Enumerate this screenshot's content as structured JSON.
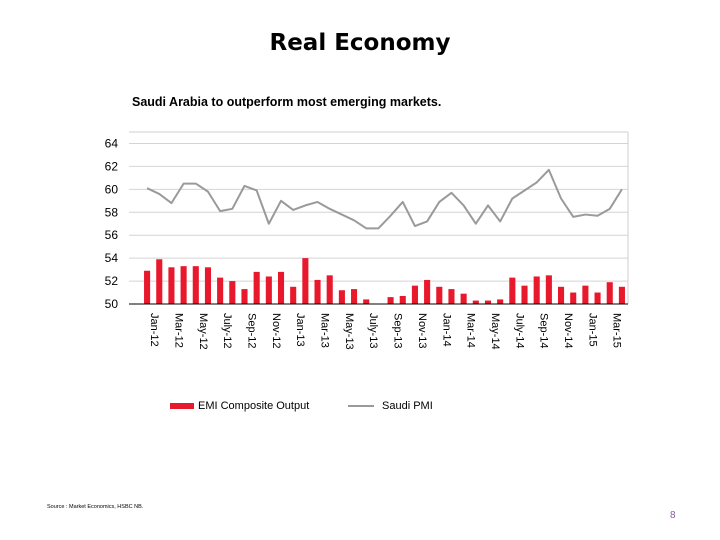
{
  "slide": {
    "title": "Real Economy",
    "source": "Source : Market Economics, HSBC NB.",
    "page_number": "8"
  },
  "chart_data": {
    "type": "bar+line",
    "title": "Saudi Arabia to outperform most emerging markets.",
    "categories": [
      "Jan-12",
      "Mar-12",
      "May-12",
      "July-12",
      "Sep-12",
      "Nov-12",
      "Jan-13",
      "Mar-13",
      "May-13",
      "July-13",
      "Sep-13",
      "Nov-13",
      "Jan-14",
      "Mar-14",
      "May-14",
      "July-14",
      "Sep-14",
      "Nov-14",
      "Jan-15",
      "Mar-15"
    ],
    "y_ticks": [
      50,
      52,
      54,
      56,
      58,
      60,
      62,
      64
    ],
    "y_tick_labels": [
      "50",
      "52",
      "54",
      "56",
      "58",
      "60",
      "62",
      "64"
    ],
    "ylim": [
      50,
      65
    ],
    "x": [
      "Jan-12",
      "Feb-12",
      "Mar-12",
      "Apr-12",
      "May-12",
      "Jun-12",
      "July-12",
      "Aug-12",
      "Sep-12",
      "Oct-12",
      "Nov-12",
      "Dec-12",
      "Jan-13",
      "Feb-13",
      "Mar-13",
      "Apr-13",
      "May-13",
      "Jun-13",
      "July-13",
      "Aug-13",
      "Sep-13",
      "Oct-13",
      "Nov-13",
      "Dec-13",
      "Jan-14",
      "Feb-14",
      "Mar-14",
      "Apr-14",
      "May-14",
      "Jun-14",
      "July-14",
      "Aug-14",
      "Sep-14",
      "Oct-14",
      "Nov-14",
      "Dec-14",
      "Jan-15",
      "Feb-15",
      "Mar-15",
      "Apr-15"
    ],
    "series": [
      {
        "name": "EMI Composite Output",
        "kind": "bar",
        "color": "#e8192c",
        "values": [
          52.9,
          53.9,
          53.2,
          53.3,
          53.3,
          53.2,
          52.3,
          52.0,
          51.3,
          52.8,
          52.4,
          52.8,
          51.5,
          54.0,
          52.1,
          52.5,
          51.2,
          51.3,
          50.4,
          null,
          50.6,
          50.7,
          51.6,
          52.1,
          51.5,
          51.3,
          50.9,
          50.3,
          50.3,
          50.4,
          52.3,
          51.6,
          52.4,
          52.5,
          51.5,
          51.0,
          51.6,
          51.0,
          51.9,
          51.5
        ]
      },
      {
        "name": "Saudi PMI",
        "kind": "line",
        "color": "#9a9a9a",
        "values": [
          60.1,
          59.6,
          58.8,
          60.5,
          60.5,
          59.8,
          58.1,
          58.3,
          60.3,
          59.9,
          57.0,
          59.0,
          58.2,
          58.6,
          58.9,
          58.3,
          57.8,
          57.3,
          56.6,
          56.6,
          57.7,
          58.9,
          56.8,
          57.2,
          58.9,
          59.7,
          58.6,
          57.0,
          58.6,
          57.2,
          59.2,
          59.9,
          60.6,
          61.7,
          59.2,
          57.6,
          57.8,
          57.7,
          58.3,
          60.0
        ]
      }
    ],
    "grid": true,
    "legend": "bottom"
  }
}
